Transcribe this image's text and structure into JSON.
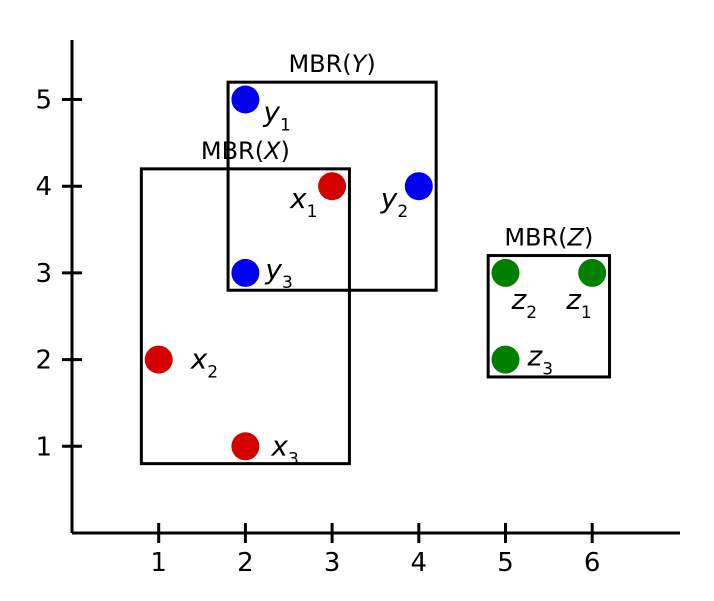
{
  "chart_data": {
    "type": "scatter",
    "title": "",
    "xlabel": "",
    "ylabel": "",
    "xlim": [
      0,
      7
    ],
    "ylim": [
      0,
      5.7
    ],
    "xticks": [
      1,
      2,
      3,
      4,
      5,
      6
    ],
    "yticks": [
      1,
      2,
      3,
      4,
      5
    ],
    "grid": false,
    "colors": {
      "X": "#d40000",
      "Y": "#0000ee",
      "Z": "#008000"
    },
    "points": [
      {
        "set": "X",
        "base": "x",
        "sub": "1",
        "x": 3,
        "y": 4
      },
      {
        "set": "X",
        "base": "x",
        "sub": "2",
        "x": 1,
        "y": 2
      },
      {
        "set": "X",
        "base": "x",
        "sub": "3",
        "x": 2,
        "y": 1
      },
      {
        "set": "Y",
        "base": "y",
        "sub": "1",
        "x": 2,
        "y": 5
      },
      {
        "set": "Y",
        "base": "y",
        "sub": "2",
        "x": 4,
        "y": 4
      },
      {
        "set": "Y",
        "base": "y",
        "sub": "3",
        "x": 2,
        "y": 3
      },
      {
        "set": "Z",
        "base": "z",
        "sub": "1",
        "x": 6,
        "y": 3
      },
      {
        "set": "Z",
        "base": "z",
        "sub": "2",
        "x": 5,
        "y": 3
      },
      {
        "set": "Z",
        "base": "z",
        "sub": "3",
        "x": 5,
        "y": 2
      }
    ],
    "mbrs": [
      {
        "set": "X",
        "label_prefix": "MBR(",
        "label_var": "X",
        "label_suffix": ")",
        "x0": 0.8,
        "x1": 3.2,
        "y0": 0.8,
        "y1": 4.2
      },
      {
        "set": "Y",
        "label_prefix": "MBR(",
        "label_var": "Y",
        "label_suffix": ")",
        "x0": 1.8,
        "x1": 4.2,
        "y0": 2.8,
        "y1": 5.2
      },
      {
        "set": "Z",
        "label_prefix": "MBR(",
        "label_var": "Z",
        "label_suffix": ")",
        "x0": 4.8,
        "x1": 6.2,
        "y0": 1.8,
        "y1": 3.2
      }
    ]
  }
}
